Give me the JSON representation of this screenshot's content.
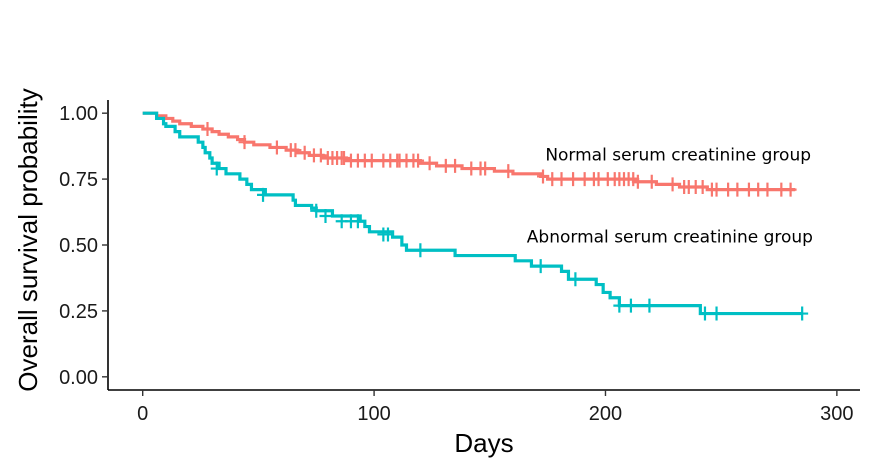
{
  "chart_data": {
    "type": "line",
    "subtype": "kaplan-meier survival curve",
    "title": "",
    "xlabel": "Days",
    "ylabel": "Overall survival probability",
    "xlim": [
      -15,
      310
    ],
    "ylim": [
      -0.05,
      1.05
    ],
    "xticks": [
      0,
      100,
      200,
      300
    ],
    "yticks": [
      0.0,
      0.25,
      0.5,
      0.75,
      1.0
    ],
    "ytick_labels": [
      "0.00",
      "0.25",
      "0.50",
      "0.75",
      "1.00"
    ],
    "grid": false,
    "legend": "none",
    "annotations": [
      {
        "text": "Normal serum creatinine group",
        "x": 174,
        "y": 0.82
      },
      {
        "text": "Abnormal serum creatinine group",
        "x": 166,
        "y": 0.51
      }
    ],
    "series": [
      {
        "color": "#F8766D",
        "steps": [
          [
            0,
            1.0
          ],
          [
            6,
            0.99
          ],
          [
            10,
            0.98
          ],
          [
            13,
            0.97
          ],
          [
            16,
            0.96
          ],
          [
            21,
            0.95
          ],
          [
            26,
            0.94
          ],
          [
            30,
            0.93
          ],
          [
            33,
            0.92
          ],
          [
            37,
            0.91
          ],
          [
            41,
            0.9
          ],
          [
            44,
            0.89
          ],
          [
            48,
            0.88
          ],
          [
            55,
            0.87
          ],
          [
            62,
            0.86
          ],
          [
            67,
            0.85
          ],
          [
            72,
            0.84
          ],
          [
            78,
            0.83
          ],
          [
            88,
            0.82
          ],
          [
            120,
            0.81
          ],
          [
            127,
            0.8
          ],
          [
            138,
            0.79
          ],
          [
            152,
            0.78
          ],
          [
            160,
            0.77
          ],
          [
            172,
            0.76
          ],
          [
            175,
            0.75
          ],
          [
            213,
            0.74
          ],
          [
            222,
            0.73
          ],
          [
            232,
            0.72
          ],
          [
            244,
            0.71
          ],
          [
            282,
            0.71
          ]
        ],
        "censored": [
          [
            28,
            0.94
          ],
          [
            44,
            0.89
          ],
          [
            58,
            0.87
          ],
          [
            64,
            0.86
          ],
          [
            66,
            0.86
          ],
          [
            70,
            0.85
          ],
          [
            74,
            0.84
          ],
          [
            77,
            0.84
          ],
          [
            80,
            0.83
          ],
          [
            82,
            0.83
          ],
          [
            84,
            0.83
          ],
          [
            86,
            0.83
          ],
          [
            87,
            0.83
          ],
          [
            90,
            0.82
          ],
          [
            93,
            0.82
          ],
          [
            96,
            0.82
          ],
          [
            99,
            0.82
          ],
          [
            104,
            0.82
          ],
          [
            107,
            0.82
          ],
          [
            110,
            0.82
          ],
          [
            111,
            0.82
          ],
          [
            114,
            0.82
          ],
          [
            117,
            0.82
          ],
          [
            119,
            0.82
          ],
          [
            124,
            0.81
          ],
          [
            131,
            0.8
          ],
          [
            135,
            0.8
          ],
          [
            142,
            0.79
          ],
          [
            146,
            0.79
          ],
          [
            148,
            0.79
          ],
          [
            158,
            0.78
          ],
          [
            173,
            0.76
          ],
          [
            177,
            0.75
          ],
          [
            181,
            0.75
          ],
          [
            186,
            0.75
          ],
          [
            191,
            0.75
          ],
          [
            195,
            0.75
          ],
          [
            197,
            0.75
          ],
          [
            201,
            0.75
          ],
          [
            204,
            0.75
          ],
          [
            206,
            0.75
          ],
          [
            208,
            0.75
          ],
          [
            210,
            0.75
          ],
          [
            212,
            0.75
          ],
          [
            214,
            0.74
          ],
          [
            220,
            0.74
          ],
          [
            229,
            0.73
          ],
          [
            234,
            0.72
          ],
          [
            236,
            0.72
          ],
          [
            239,
            0.72
          ],
          [
            242,
            0.72
          ],
          [
            246,
            0.71
          ],
          [
            248,
            0.71
          ],
          [
            253,
            0.71
          ],
          [
            257,
            0.71
          ],
          [
            262,
            0.71
          ],
          [
            266,
            0.71
          ],
          [
            270,
            0.71
          ],
          [
            276,
            0.71
          ],
          [
            280,
            0.71
          ]
        ]
      },
      {
        "color": "#00BFC4",
        "steps": [
          [
            0,
            1.0
          ],
          [
            6,
            0.98
          ],
          [
            9,
            0.96
          ],
          [
            10,
            0.95
          ],
          [
            14,
            0.93
          ],
          [
            16,
            0.91
          ],
          [
            24,
            0.89
          ],
          [
            26,
            0.87
          ],
          [
            27,
            0.85
          ],
          [
            29,
            0.83
          ],
          [
            30,
            0.81
          ],
          [
            33,
            0.79
          ],
          [
            36,
            0.77
          ],
          [
            42,
            0.75
          ],
          [
            45,
            0.73
          ],
          [
            47,
            0.71
          ],
          [
            53,
            0.69
          ],
          [
            65,
            0.67
          ],
          [
            66,
            0.65
          ],
          [
            73,
            0.64
          ],
          [
            75,
            0.63
          ],
          [
            82,
            0.61
          ],
          [
            94,
            0.59
          ],
          [
            96,
            0.57
          ],
          [
            98,
            0.55
          ],
          [
            108,
            0.53
          ],
          [
            112,
            0.5
          ],
          [
            114,
            0.48
          ],
          [
            135,
            0.46
          ],
          [
            161,
            0.44
          ],
          [
            168,
            0.42
          ],
          [
            181,
            0.4
          ],
          [
            184,
            0.37
          ],
          [
            196,
            0.35
          ],
          [
            199,
            0.32
          ],
          [
            202,
            0.3
          ],
          [
            206,
            0.27
          ],
          [
            241,
            0.24
          ],
          [
            285,
            0.24
          ]
        ],
        "censored": [
          [
            32,
            0.79
          ],
          [
            52,
            0.69
          ],
          [
            75,
            0.63
          ],
          [
            79,
            0.61
          ],
          [
            86,
            0.59
          ],
          [
            90,
            0.59
          ],
          [
            93,
            0.59
          ],
          [
            104,
            0.54
          ],
          [
            106,
            0.54
          ],
          [
            120,
            0.48
          ],
          [
            172,
            0.42
          ],
          [
            187,
            0.37
          ],
          [
            206,
            0.27
          ],
          [
            211,
            0.27
          ],
          [
            219,
            0.27
          ],
          [
            243,
            0.24
          ],
          [
            248,
            0.24
          ],
          [
            285,
            0.24
          ]
        ]
      }
    ]
  }
}
